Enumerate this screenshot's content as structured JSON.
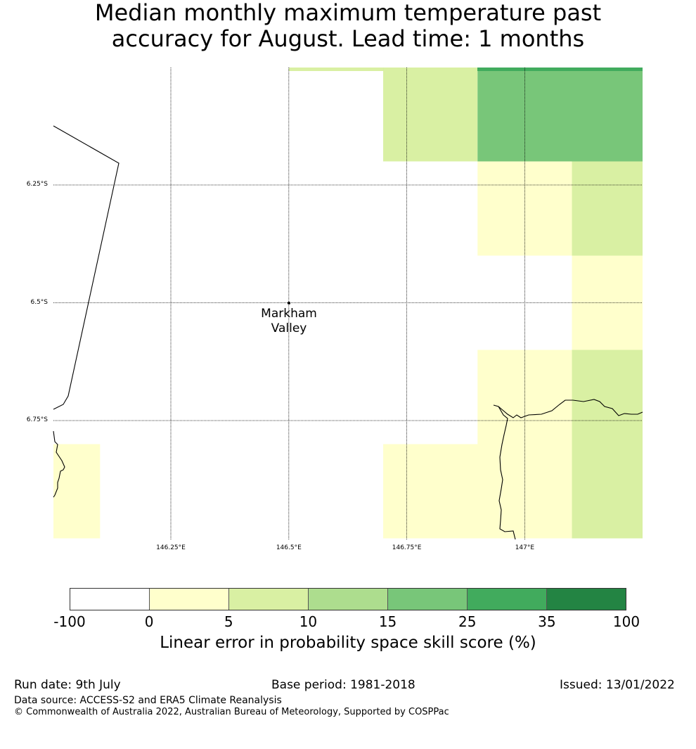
{
  "title_line1": "Median monthly maximum temperature past",
  "title_line2": "accuracy for August. Lead time: 1 months",
  "map": {
    "lat_labels": [
      "6.25°S",
      "6.5°S",
      "6.75°S"
    ],
    "lon_labels": [
      "146.25°E",
      "146.5°E",
      "146.75°E",
      "147°E"
    ],
    "place": {
      "line1": "Markham",
      "line2": "Valley"
    },
    "cells": [
      {
        "lon0": 146.5,
        "lon1": 146.7,
        "lat0": -6.0,
        "lat1": -6.0,
        "cat": 2
      },
      {
        "lon0": 146.7,
        "lon1": 146.9,
        "lat0": -6.0,
        "lat1": -6.2,
        "cat": 2
      },
      {
        "lon0": 146.9,
        "lon1": 147.25,
        "lat0": -6.0,
        "lat1": -6.2,
        "cat": 4
      },
      {
        "lon0": 146.9,
        "lon1": 147.1,
        "lat0": -6.2,
        "lat1": -6.4,
        "cat": 1
      },
      {
        "lon0": 147.1,
        "lon1": 147.25,
        "lat0": -6.2,
        "lat1": -6.4,
        "cat": 2
      },
      {
        "lon0": 147.1,
        "lon1": 147.25,
        "lat0": -6.4,
        "lat1": -6.6,
        "cat": 1
      },
      {
        "lon0": 146.9,
        "lon1": 147.1,
        "lat0": -6.6,
        "lat1": -6.8,
        "cat": 1
      },
      {
        "lon0": 147.1,
        "lon1": 147.25,
        "lat0": -6.6,
        "lat1": -7.0,
        "cat": 2
      },
      {
        "lon0": 146.7,
        "lon1": 147.1,
        "lat0": -6.8,
        "lat1": -7.0,
        "cat": 1
      },
      {
        "lon0": 146.0,
        "lon1": 146.1,
        "lat0": -6.8,
        "lat1": -7.0,
        "cat": 1
      }
    ]
  },
  "colorbar": {
    "ticks": [
      "-100",
      "0",
      "5",
      "10",
      "15",
      "25",
      "35",
      "100"
    ],
    "colors": [
      "#ffffff",
      "#ffffcc",
      "#d9f0a3",
      "#addd8e",
      "#78c679",
      "#41ab5d",
      "#238443"
    ],
    "label": "Linear error in probability space skill score (%)"
  },
  "footer": {
    "run_date": "Run date: 9th July",
    "base_period": "Base period: 1981-2018",
    "issued": "Issued: 13/01/2022",
    "data_source": "Data source: ACCESS-S2 and ERA5 Climate Reanalysis",
    "copyright": "© Commonwealth of Australia 2022, Australian Bureau of Meteorology, Supported by COSPPac"
  }
}
